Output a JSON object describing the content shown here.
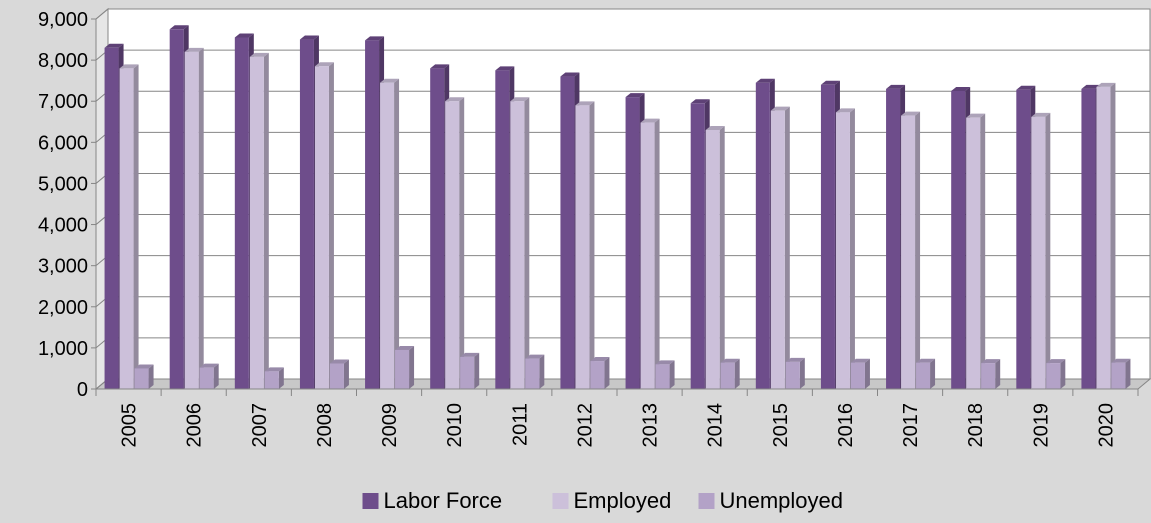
{
  "chart_data": {
    "type": "bar",
    "categories": [
      "2005",
      "2006",
      "2007",
      "2008",
      "2009",
      "2010",
      "2011",
      "2012",
      "2013",
      "2014",
      "2015",
      "2016",
      "2017",
      "2018",
      "2019",
      "2020"
    ],
    "series": [
      {
        "name": "Labor Force",
        "color": "#6e4d8b",
        "values": [
          8300,
          8750,
          8550,
          8500,
          8480,
          7800,
          7750,
          7600,
          7100,
          6950,
          7450,
          7400,
          7300,
          7250,
          7280,
          7300
        ]
      },
      {
        "name": "Employed",
        "color": "#ccc0da",
        "values": [
          7800,
          8200,
          8080,
          7850,
          7450,
          7000,
          7000,
          6900,
          6480,
          6300,
          6770,
          6730,
          6650,
          6600,
          6620,
          7350
        ]
      },
      {
        "name": "Unemployed",
        "color": "#b3a2c7",
        "values": [
          500,
          520,
          430,
          620,
          950,
          780,
          740,
          680,
          600,
          640,
          660,
          640,
          640,
          630,
          630,
          640
        ]
      }
    ],
    "ylim": [
      0,
      9000
    ],
    "yticks": [
      0,
      1000,
      2000,
      3000,
      4000,
      5000,
      6000,
      7000,
      8000,
      9000
    ],
    "ytick_labels": [
      "0",
      "1,000",
      "2,000",
      "3,000",
      "4,000",
      "5,000",
      "6,000",
      "7,000",
      "8,000",
      "9,000"
    ],
    "grid": true,
    "legend_position": "bottom",
    "xlabel": "",
    "ylabel": "",
    "title": ""
  }
}
